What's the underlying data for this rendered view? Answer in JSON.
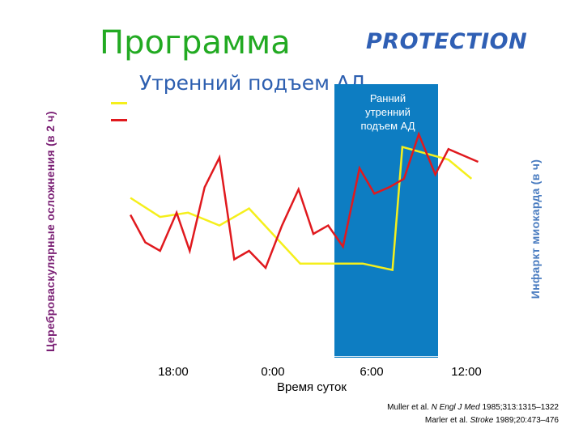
{
  "header": {
    "title": "Программа",
    "brand": "PROTECTION",
    "subtitle": "Утренний подъем АД"
  },
  "band": {
    "label": "Ранний\nутренний\nподъем АД"
  },
  "colors": {
    "title": "#22aa22",
    "brand": "#2f5fb4",
    "band": "#0d7dc2",
    "yellow_series": "#f5ef1c",
    "red_series": "#e0191e"
  },
  "references": {
    "ref1_authors": "Muller et al.",
    "ref1_journal": "N Engl J Med",
    "ref1_detail": "1985;313:1315–1322",
    "ref2_authors": "Marler et al.",
    "ref2_journal": "Stroke",
    "ref2_detail": "1989;20:473–476"
  },
  "chart_data": {
    "type": "line",
    "title": "",
    "xlabel": "Время суток",
    "ylabel_left": "Цереброваскулярные осложнения (в 2 ч)",
    "ylabel_right": "Инфаркт миокарда (в ч)",
    "x_ticks": [
      "18:00",
      "0:00",
      "6:00",
      "12:00"
    ],
    "x_hours_from_tick_0": [
      0,
      6,
      12,
      18
    ],
    "grid": false,
    "legend": "top-left",
    "highlight_band": {
      "label": "Ранний утренний подъем АД",
      "x_start_hours": 10.8,
      "x_end_hours": 16.7
    },
    "y_scale": "relative, no tick labels",
    "series": [
      {
        "color": "yellow",
        "x_hours": [
          -2.6,
          -0.8,
          0.9,
          2.8,
          4.6,
          7.7,
          11.5,
          13.3,
          13.9,
          16.7,
          18.1
        ],
        "values": [
          75,
          66,
          68,
          62,
          70,
          44,
          44,
          41,
          99,
          93,
          84
        ]
      },
      {
        "color": "red",
        "x_hours": [
          -2.6,
          -1.7,
          -0.8,
          0.2,
          1.0,
          1.9,
          2.8,
          3.7,
          4.6,
          5.6,
          6.6,
          7.6,
          8.5,
          9.4,
          10.3,
          11.3,
          12.2,
          13.1,
          14.0,
          14.9,
          15.9,
          16.7,
          17.6,
          18.5
        ],
        "values": [
          67,
          54,
          50,
          68,
          50,
          80,
          94,
          46,
          50,
          42,
          62,
          79,
          58,
          62,
          52,
          89,
          77,
          80,
          84,
          105,
          86,
          98,
          95,
          92
        ]
      }
    ]
  }
}
